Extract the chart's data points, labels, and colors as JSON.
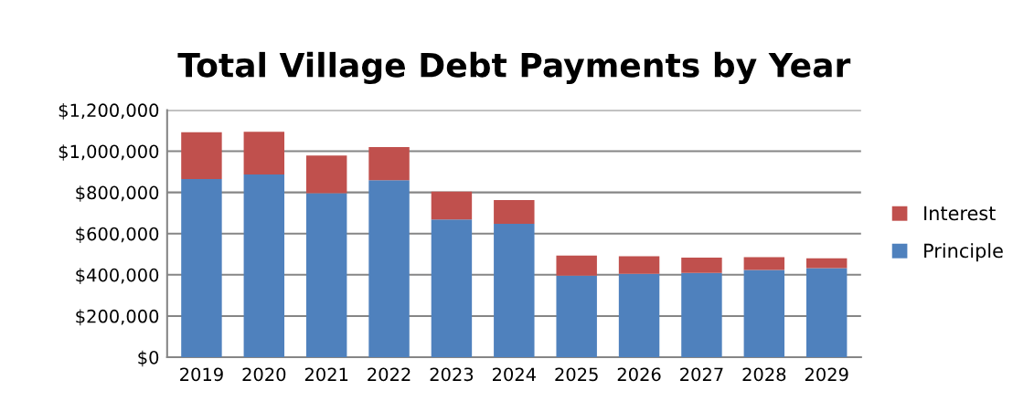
{
  "chart_data": {
    "type": "bar",
    "title": "Total Village Debt Payments by Year",
    "stacked": true,
    "categories": [
      "2019",
      "2020",
      "2021",
      "2022",
      "2023",
      "2024",
      "2025",
      "2026",
      "2027",
      "2028",
      "2029"
    ],
    "series": [
      {
        "name": "Principle",
        "color": "#4f81bd",
        "values": [
          865000,
          887000,
          796000,
          859000,
          669000,
          648000,
          396000,
          405000,
          409000,
          424000,
          433000
        ]
      },
      {
        "name": "Interest",
        "color": "#c0504d",
        "values": [
          227000,
          207000,
          183000,
          161000,
          135000,
          115000,
          97000,
          85000,
          74000,
          62000,
          47000
        ]
      }
    ],
    "ylim": [
      0,
      1200000
    ],
    "yticks": [
      {
        "value": 0,
        "label": "$0"
      },
      {
        "value": 200000,
        "label": "$200,000"
      },
      {
        "value": 400000,
        "label": "$400,000"
      },
      {
        "value": 600000,
        "label": "$600,000"
      },
      {
        "value": 800000,
        "label": "$800,000"
      },
      {
        "value": 1000000,
        "label": "$1,000,000"
      },
      {
        "value": 1200000,
        "label": "$1,200,000"
      }
    ],
    "grid": "y",
    "legend": "right"
  }
}
